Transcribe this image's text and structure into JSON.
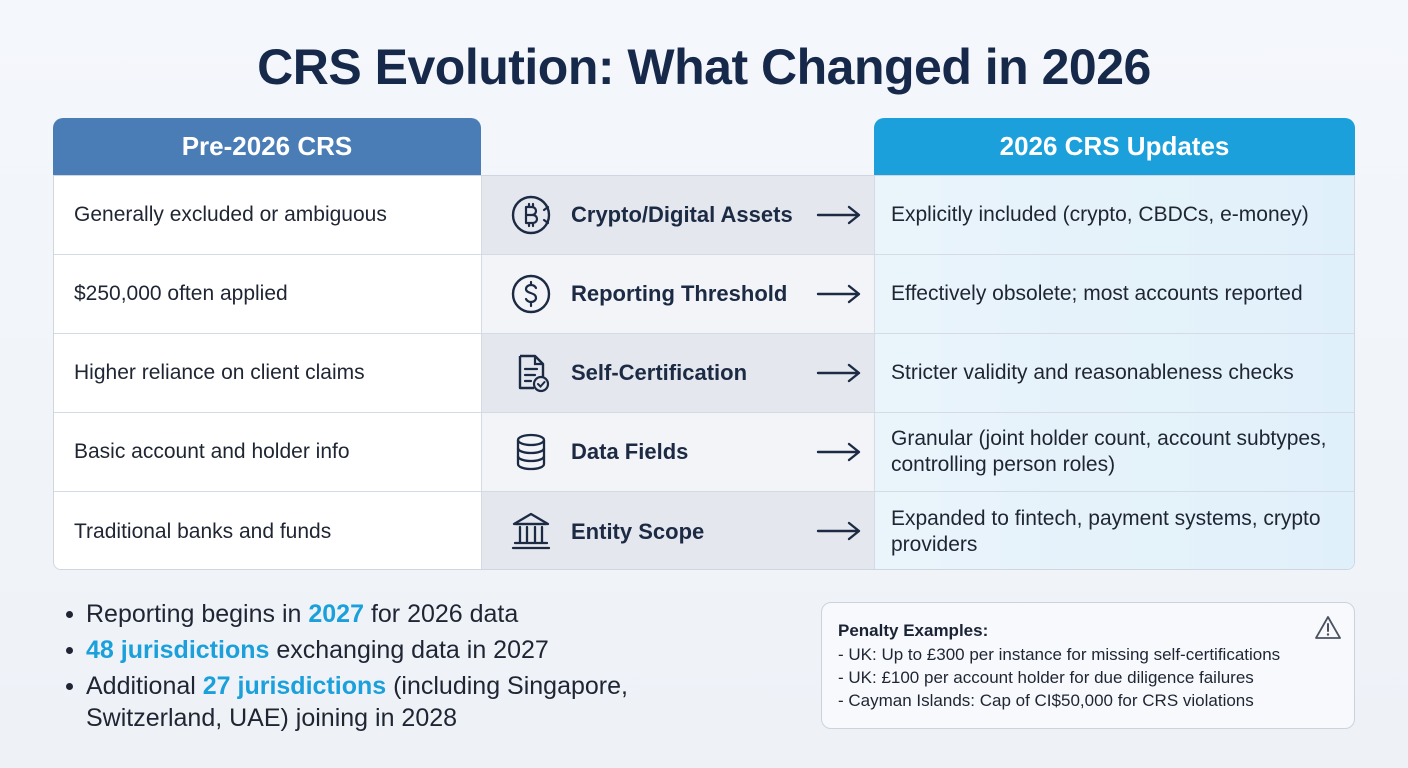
{
  "title": "CRS Evolution: What Changed in 2026",
  "headers": {
    "left": "Pre-2026 CRS",
    "right": "2026 CRS Updates"
  },
  "rows": [
    {
      "left": "Generally excluded or ambiguous",
      "label": "Crypto/Digital Assets",
      "icon": "bitcoin-icon",
      "right": "Explicitly included (crypto, CBDCs, e-money)"
    },
    {
      "left": "$250,000 often applied",
      "label": "Reporting Threshold",
      "icon": "dollar-icon",
      "right": "Effectively obsolete; most accounts reported"
    },
    {
      "left": "Higher reliance on client claims",
      "label": "Self-Certification",
      "icon": "document-check-icon",
      "right": "Stricter validity and reasonableness checks"
    },
    {
      "left": "Basic account and holder info",
      "label": "Data Fields",
      "icon": "database-icon",
      "right": "Granular (joint holder count, account subtypes, controlling person roles)"
    },
    {
      "left": "Traditional banks and funds",
      "label": "Entity Scope",
      "icon": "bank-icon",
      "right": "Expanded to fintech, payment systems, crypto providers"
    }
  ],
  "bullets": [
    {
      "pre": "Reporting begins in ",
      "hl": "2027",
      "post": " for 2026 data"
    },
    {
      "pre": "",
      "hl": "48 jurisdictions",
      "post": " exchanging data in 2027"
    },
    {
      "pre": "Additional ",
      "hl": "27 jurisdictions",
      "post": " (including Singapore, Switzerland, UAE) joining in 2028"
    }
  ],
  "penalty": {
    "title": "Penalty Examples:",
    "lines": [
      "- UK: Up to £300 per instance for missing self-certifications",
      "- UK: £100 per account holder for due diligence failures",
      "- Cayman Islands: Cap of CI$50,000 for CRS violations"
    ],
    "icon": "warning-icon"
  },
  "colors": {
    "title": "#16294a",
    "left_header": "#4a7db6",
    "right_header": "#1ba0dc",
    "highlight": "#1ba0dc"
  }
}
